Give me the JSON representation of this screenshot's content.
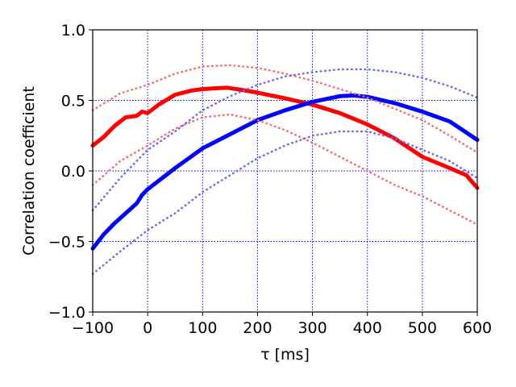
{
  "chart_data": {
    "type": "line",
    "title": "",
    "xlabel": "τ [ms]",
    "ylabel": "Correlation coefficient",
    "xlim": [
      -100,
      600
    ],
    "ylim": [
      -1.0,
      1.0
    ],
    "xticks": [
      -100,
      0,
      100,
      200,
      300,
      400,
      500,
      600
    ],
    "xtick_labels": [
      "−100",
      "0",
      "100",
      "200",
      "300",
      "400",
      "500",
      "600"
    ],
    "yticks": [
      -1.0,
      -0.5,
      0.0,
      0.5,
      1.0
    ],
    "ytick_labels": [
      "−1.0",
      "−0.5",
      "0.0",
      "0.5",
      "1.0"
    ],
    "grid": true,
    "grid_color": "#0000ff",
    "series": [
      {
        "color": "#ff0000",
        "style": "solid",
        "width": 5,
        "x": [
          -100,
          -80,
          -60,
          -40,
          -20,
          -10,
          0,
          20,
          50,
          80,
          100,
          120,
          145,
          170,
          200,
          250,
          300,
          350,
          400,
          450,
          500,
          550,
          580,
          600
        ],
        "y": [
          0.18,
          0.24,
          0.32,
          0.38,
          0.39,
          0.42,
          0.41,
          0.47,
          0.54,
          0.57,
          0.58,
          0.585,
          0.59,
          0.575,
          0.555,
          0.515,
          0.47,
          0.41,
          0.33,
          0.23,
          0.1,
          0.02,
          -0.03,
          -0.12
        ]
      },
      {
        "color": "#0000ff",
        "style": "solid",
        "width": 5,
        "x": [
          -100,
          -80,
          -60,
          -40,
          -20,
          -10,
          0,
          50,
          100,
          150,
          200,
          250,
          300,
          350,
          375,
          400,
          450,
          500,
          550,
          600
        ],
        "y": [
          -0.55,
          -0.45,
          -0.37,
          -0.3,
          -0.23,
          -0.17,
          -0.13,
          0.02,
          0.16,
          0.26,
          0.36,
          0.43,
          0.49,
          0.53,
          0.535,
          0.525,
          0.48,
          0.42,
          0.35,
          0.22
        ]
      },
      {
        "color": "#ff6666",
        "style": "dotted",
        "width": 2.5,
        "x": [
          -100,
          -50,
          0,
          50,
          100,
          150,
          200,
          250,
          300,
          350,
          400,
          450,
          500,
          550,
          600
        ],
        "y": [
          0.43,
          0.55,
          0.61,
          0.69,
          0.74,
          0.75,
          0.73,
          0.69,
          0.64,
          0.58,
          0.52,
          0.44,
          0.36,
          0.25,
          0.13
        ]
      },
      {
        "color": "#ff6666",
        "style": "dotted",
        "width": 2.5,
        "x": [
          -100,
          -50,
          0,
          50,
          100,
          150,
          200,
          250,
          300,
          350,
          400,
          450,
          500,
          550,
          600
        ],
        "y": [
          -0.1,
          0.07,
          0.18,
          0.3,
          0.38,
          0.4,
          0.36,
          0.29,
          0.2,
          0.1,
          0.0,
          -0.1,
          -0.18,
          -0.28,
          -0.38
        ]
      },
      {
        "color": "#6666ff",
        "style": "dotted",
        "width": 2.5,
        "x": [
          -100,
          -50,
          0,
          50,
          100,
          150,
          200,
          250,
          300,
          350,
          400,
          450,
          500,
          550,
          600
        ],
        "y": [
          -0.28,
          -0.05,
          0.15,
          0.28,
          0.43,
          0.53,
          0.61,
          0.67,
          0.7,
          0.72,
          0.72,
          0.7,
          0.66,
          0.6,
          0.52
        ]
      },
      {
        "color": "#6666ff",
        "style": "dotted",
        "width": 2.5,
        "x": [
          -100,
          -50,
          0,
          50,
          100,
          150,
          200,
          250,
          300,
          350,
          400,
          450,
          500,
          550,
          600
        ],
        "y": [
          -0.73,
          -0.57,
          -0.42,
          -0.3,
          -0.15,
          -0.03,
          0.09,
          0.18,
          0.25,
          0.28,
          0.28,
          0.23,
          0.15,
          0.07,
          -0.05
        ]
      }
    ]
  }
}
